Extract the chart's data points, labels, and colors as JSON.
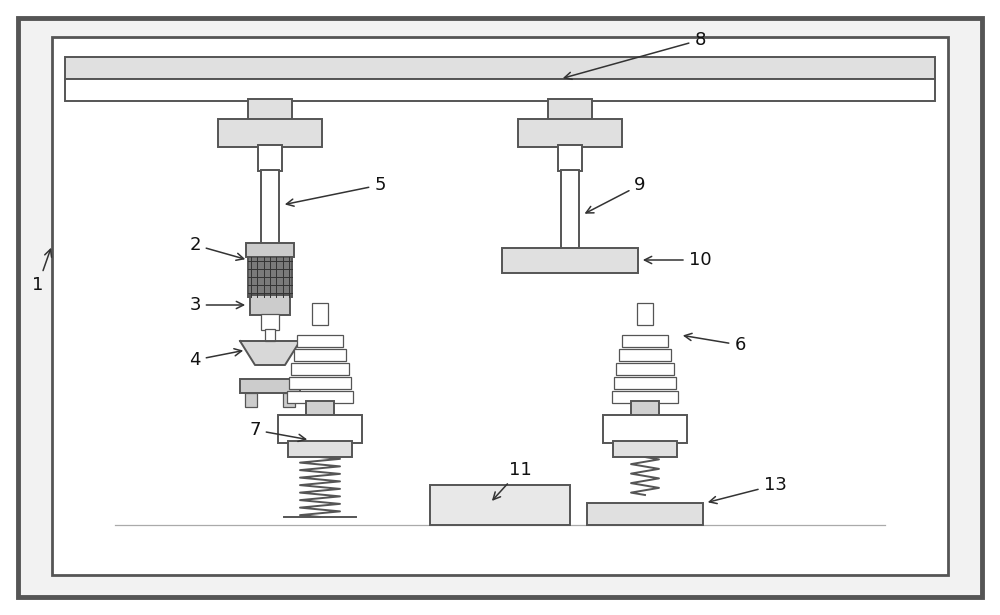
{
  "bg_color": "#ffffff",
  "lc": "#555555",
  "lw_main": 1.4,
  "lw_thick": 2.2,
  "lw_thin": 0.9,
  "fs_label": 13,
  "label_color": "#111111"
}
